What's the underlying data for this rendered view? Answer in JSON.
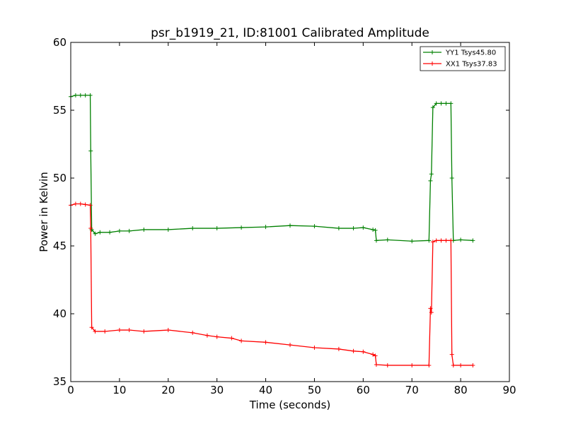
{
  "chart_data": {
    "type": "line",
    "title": "psr_b1919_21, ID:81001 Calibrated Amplitude",
    "xlabel": "Time (seconds)",
    "ylabel": "Power in Kelvin",
    "xlim": [
      0,
      90
    ],
    "ylim": [
      35,
      60
    ],
    "xticks": [
      0,
      10,
      20,
      30,
      40,
      50,
      60,
      70,
      80,
      90
    ],
    "yticks": [
      35,
      40,
      45,
      50,
      55,
      60
    ],
    "grid": false,
    "legend_position": "top-right",
    "series": [
      {
        "name": "YY1 Tsys45.80",
        "color": "#008000",
        "marker": "+",
        "x": [
          0.0,
          1.0,
          2.0,
          3.0,
          4.0,
          4.1,
          4.3,
          5.0,
          6.0,
          8.0,
          10.0,
          12.0,
          15.0,
          20.0,
          25.0,
          30.0,
          35.0,
          40.0,
          45.0,
          50.0,
          55.0,
          58.0,
          60.0,
          62.0,
          62.5,
          62.7,
          65.0,
          70.0,
          73.5,
          73.8,
          74.0,
          74.3,
          75.0,
          76.0,
          77.0,
          78.0,
          78.2,
          78.5,
          80.0,
          82.5
        ],
        "y": [
          56.0,
          56.1,
          56.1,
          56.1,
          56.1,
          52.0,
          46.2,
          45.9,
          46.0,
          46.0,
          46.1,
          46.1,
          46.2,
          46.2,
          46.3,
          46.3,
          46.35,
          46.4,
          46.5,
          46.45,
          46.3,
          46.3,
          46.35,
          46.2,
          46.15,
          45.4,
          45.45,
          45.35,
          45.4,
          49.8,
          50.3,
          55.2,
          55.5,
          55.5,
          55.5,
          55.5,
          50.0,
          45.4,
          45.45,
          45.4
        ]
      },
      {
        "name": "XX1 Tsys37.83",
        "color": "#ff0000",
        "marker": "+",
        "x": [
          0.0,
          1.0,
          2.0,
          3.0,
          4.0,
          4.1,
          4.3,
          5.0,
          7.0,
          10.0,
          12.0,
          15.0,
          20.0,
          25.0,
          28.0,
          30.0,
          33.0,
          35.0,
          40.0,
          45.0,
          50.0,
          55.0,
          58.0,
          60.0,
          62.0,
          62.5,
          62.7,
          65.0,
          70.0,
          73.5,
          73.8,
          74.0,
          74.3,
          75.0,
          76.0,
          77.0,
          78.0,
          78.2,
          78.5,
          80.0,
          82.5
        ],
        "y": [
          48.0,
          48.1,
          48.1,
          48.05,
          48.0,
          46.3,
          39.0,
          38.7,
          38.7,
          38.8,
          38.8,
          38.7,
          38.8,
          38.6,
          38.4,
          38.3,
          38.2,
          38.0,
          37.9,
          37.7,
          37.5,
          37.4,
          37.25,
          37.2,
          37.0,
          36.9,
          36.25,
          36.2,
          36.2,
          36.2,
          40.4,
          40.1,
          45.3,
          45.4,
          45.4,
          45.4,
          45.4,
          37.0,
          36.2,
          36.2,
          36.2
        ]
      }
    ]
  }
}
